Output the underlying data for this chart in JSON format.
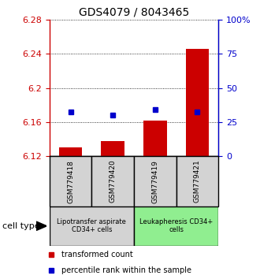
{
  "title": "GDS4079 / 8043465",
  "samples": [
    "GSM779418",
    "GSM779420",
    "GSM779419",
    "GSM779421"
  ],
  "red_values": [
    6.13,
    6.138,
    6.162,
    6.246
  ],
  "blue_values": [
    6.172,
    6.168,
    6.175,
    6.172
  ],
  "ylim": [
    6.12,
    6.28
  ],
  "yticks_left": [
    6.12,
    6.16,
    6.2,
    6.24,
    6.28
  ],
  "yticks_right": [
    0,
    25,
    50,
    75,
    100
  ],
  "yticks_right_labels": [
    "0",
    "25",
    "50",
    "75",
    "100%"
  ],
  "group1_label": "Lipotransfer aspirate\nCD34+ cells",
  "group2_label": "Leukapheresis CD34+\ncells",
  "group1_color": "#d3d3d3",
  "group2_color": "#90ee90",
  "sample_box_color": "#d3d3d3",
  "cell_type_label": "cell type",
  "legend1": "transformed count",
  "legend2": "percentile rank within the sample",
  "red_color": "#cc0000",
  "blue_color": "#0000cc",
  "bar_bottom": 6.12,
  "bar_width": 0.55,
  "title_fontsize": 10,
  "label_fontsize": 7,
  "tick_fontsize": 8
}
